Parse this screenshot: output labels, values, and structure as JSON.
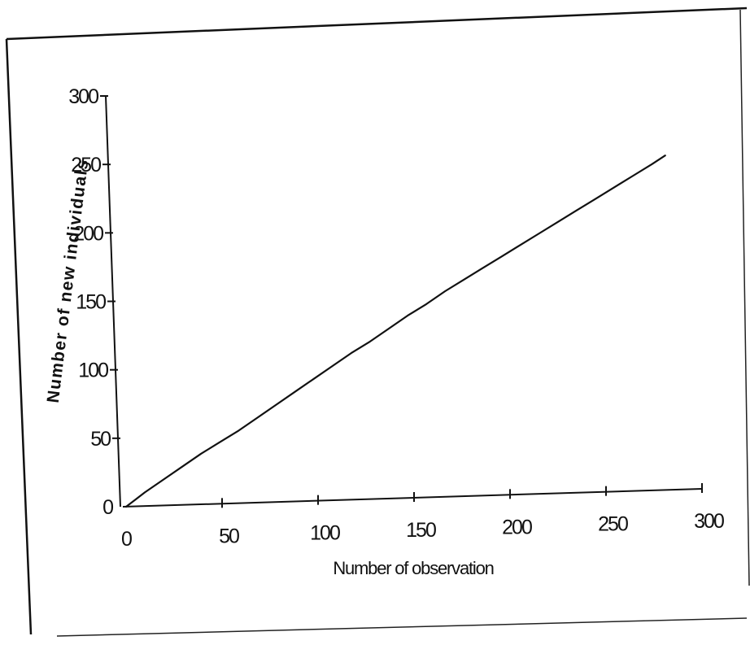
{
  "chart_data": {
    "type": "line",
    "title": "",
    "xlabel": "Number of observation",
    "ylabel": "Number of new individuals",
    "xlim": [
      0,
      300
    ],
    "ylim": [
      0,
      300
    ],
    "x_ticks": [
      0,
      50,
      100,
      150,
      200,
      250,
      300
    ],
    "x_tick_labels": [
      "0",
      "50",
      "100",
      "150",
      "200",
      "250",
      "300"
    ],
    "y_ticks": [
      0,
      50,
      100,
      150,
      200,
      250,
      300
    ],
    "y_tick_labels": [
      "0",
      "50",
      "100",
      "150",
      "200",
      "250",
      "300"
    ],
    "grid": false,
    "legend": "none",
    "series": [
      {
        "x": [
          0,
          5,
          10,
          20,
          30,
          40,
          50,
          60,
          70,
          80,
          90,
          100,
          110,
          120,
          130,
          140,
          150,
          160,
          170,
          180,
          190,
          200,
          210,
          220,
          230,
          240,
          250,
          260,
          270,
          280,
          287
        ],
        "y": [
          0,
          5,
          10,
          19,
          28,
          37,
          45,
          53,
          62,
          71,
          80,
          89,
          98,
          107,
          115,
          124,
          133,
          141,
          150,
          158,
          166,
          174,
          182,
          190,
          198,
          206,
          214,
          222,
          230,
          238,
          244
        ]
      }
    ],
    "line_color": "#111111"
  }
}
